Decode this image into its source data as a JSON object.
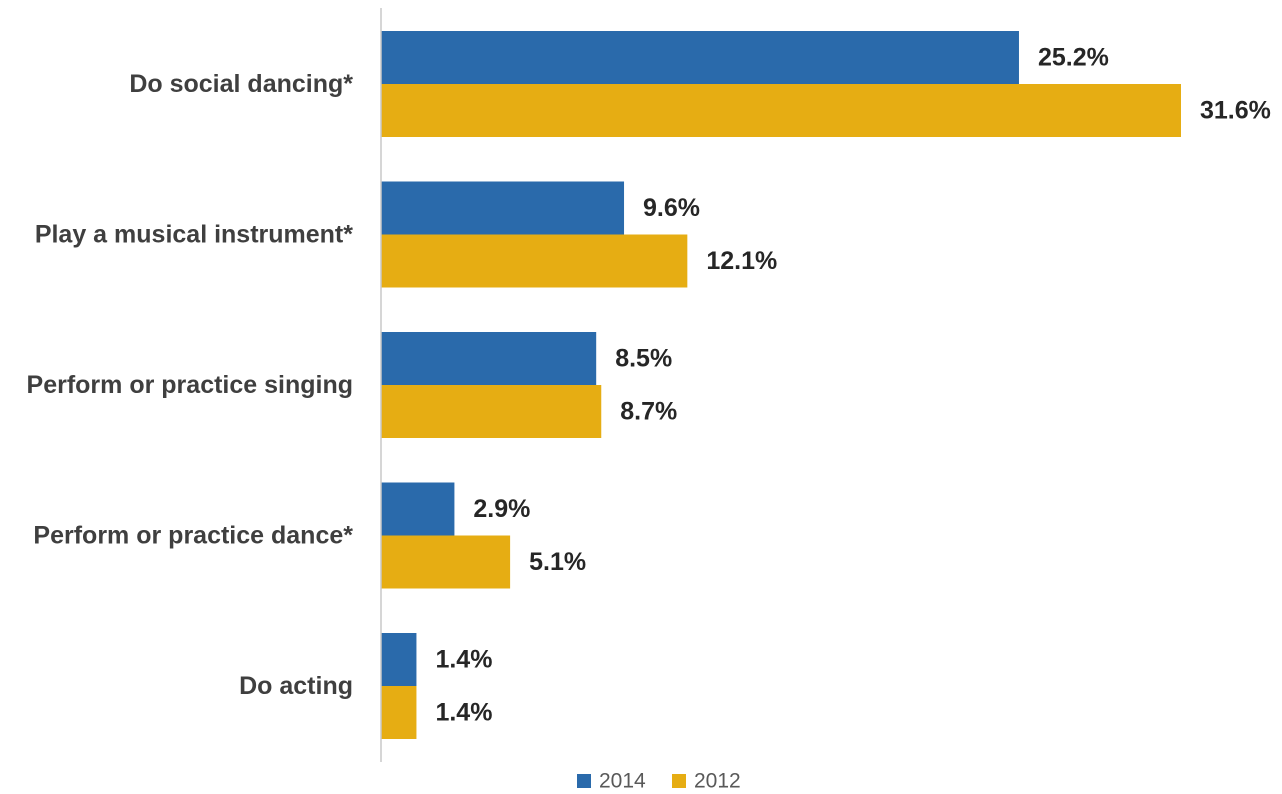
{
  "chart_data": {
    "type": "bar",
    "orientation": "horizontal",
    "categories": [
      "Do social dancing*",
      "Play a musical instrument*",
      "Perform or practice singing",
      "Perform or practice dance*",
      "Do acting"
    ],
    "series": [
      {
        "name": "2014",
        "color": "#2a6aab",
        "values": [
          25.2,
          9.6,
          8.5,
          2.9,
          1.4
        ],
        "labels": [
          "25.2%",
          "9.6%",
          "8.5%",
          "2.9%",
          "1.4%"
        ]
      },
      {
        "name": "2012",
        "color": "#e6ad13",
        "values": [
          31.6,
          12.1,
          8.7,
          5.1,
          1.4
        ],
        "labels": [
          "31.6%",
          "12.1%",
          "8.7%",
          "5.1%",
          "1.4%"
        ]
      }
    ],
    "xlim": [
      0,
      31.6
    ],
    "grid": false,
    "legend_position": "bottom"
  }
}
